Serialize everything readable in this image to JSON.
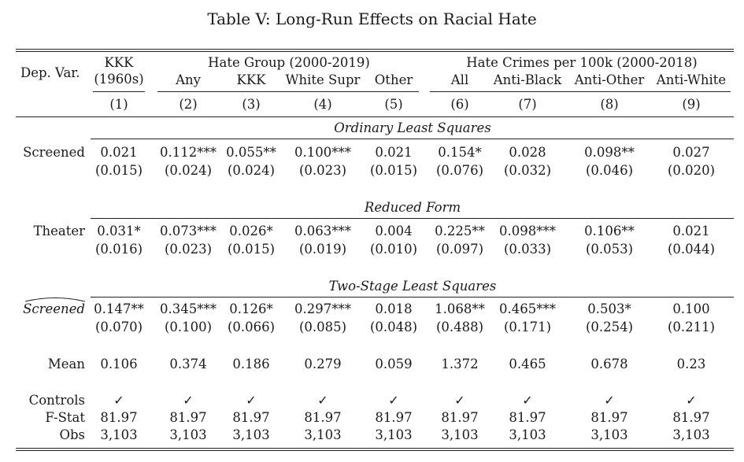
{
  "title": "Table V: Long-Run Effects on Racial Hate",
  "header": {
    "depvar": "Dep. Var.",
    "kkk_top": "KKK",
    "kkk_sub": "(1960s)",
    "group_hate": "Hate Group (2000-2019)",
    "group_crimes": "Hate Crimes per 100k (2000-2018)",
    "col_labels": [
      "Any",
      "KKK",
      "White Supr",
      "Other",
      "All",
      "Anti-Black",
      "Anti-Other",
      "Anti-White"
    ],
    "col_numbers": [
      "(1)",
      "(2)",
      "(3)",
      "(4)",
      "(5)",
      "(6)",
      "(7)",
      "(8)",
      "(9)"
    ]
  },
  "sections": {
    "ols": "Ordinary Least Squares",
    "rf": "Reduced Form",
    "tsls": "Two-Stage Least Squares"
  },
  "rows": {
    "screened": {
      "label": "Screened",
      "coef": [
        "0.021",
        "0.112***",
        "0.055**",
        "0.100***",
        "0.021",
        "0.154*",
        "0.028",
        "0.098**",
        "0.027"
      ],
      "se": [
        "(0.015)",
        "(0.024)",
        "(0.024)",
        "(0.023)",
        "(0.015)",
        "(0.076)",
        "(0.032)",
        "(0.046)",
        "(0.020)"
      ]
    },
    "theater": {
      "label": "Theater",
      "coef": [
        "0.031*",
        "0.073***",
        "0.026*",
        "0.063***",
        "0.004",
        "0.225**",
        "0.098***",
        "0.106**",
        "0.021"
      ],
      "se": [
        "(0.016)",
        "(0.023)",
        "(0.015)",
        "(0.019)",
        "(0.010)",
        "(0.097)",
        "(0.033)",
        "(0.053)",
        "(0.044)"
      ]
    },
    "screened_hat": {
      "label": "Screened",
      "coef": [
        "0.147**",
        "0.345***",
        "0.126*",
        "0.297***",
        "0.018",
        "1.068**",
        "0.465***",
        "0.503*",
        "0.100"
      ],
      "se": [
        "(0.070)",
        "(0.100)",
        "(0.066)",
        "(0.085)",
        "(0.048)",
        "(0.488)",
        "(0.171)",
        "(0.254)",
        "(0.211)"
      ]
    },
    "mean": {
      "label": "Mean",
      "values": [
        "0.106",
        "0.374",
        "0.186",
        "0.279",
        "0.059",
        "1.372",
        "0.465",
        "0.678",
        "0.23"
      ]
    },
    "controls": {
      "label": "Controls",
      "values": [
        "✓",
        "✓",
        "✓",
        "✓",
        "✓",
        "✓",
        "✓",
        "✓",
        "✓"
      ]
    },
    "fstat": {
      "label": "F-Stat",
      "values": [
        "81.97",
        "81.97",
        "81.97",
        "81.97",
        "81.97",
        "81.97",
        "81.97",
        "81.97",
        "81.97"
      ]
    },
    "obs": {
      "label": "Obs",
      "values": [
        "3,103",
        "3,103",
        "3,103",
        "3,103",
        "3,103",
        "3,103",
        "3,103",
        "3,103",
        "3,103"
      ]
    }
  }
}
